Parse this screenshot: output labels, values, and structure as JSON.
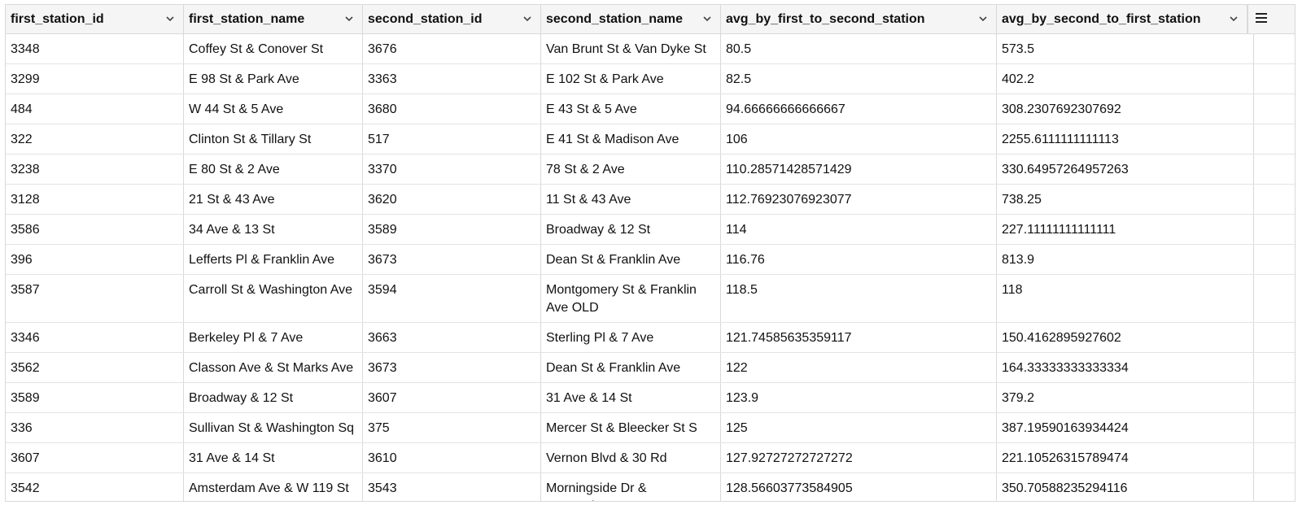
{
  "table": {
    "columns": [
      "first_station_id",
      "first_station_name",
      "second_station_id",
      "second_station_name",
      "avg_by_first_to_second_station",
      "avg_by_second_to_first_station"
    ],
    "rows": [
      [
        "3348",
        "Coffey St & Conover St",
        "3676",
        "Van Brunt St & Van Dyke St",
        "80.5",
        "573.5"
      ],
      [
        "3299",
        "E 98 St & Park Ave",
        "3363",
        "E 102 St & Park Ave",
        "82.5",
        "402.2"
      ],
      [
        "484",
        "W 44 St & 5 Ave",
        "3680",
        "E 43 St & 5 Ave",
        "94.66666666666667",
        "308.2307692307692"
      ],
      [
        "322",
        "Clinton St & Tillary St",
        "517",
        "E 41 St & Madison Ave",
        "106",
        "2255.6111111111113"
      ],
      [
        "3238",
        "E 80 St & 2 Ave",
        "3370",
        "78 St & 2 Ave",
        "110.28571428571429",
        "330.64957264957263"
      ],
      [
        "3128",
        "21 St & 43 Ave",
        "3620",
        "11 St & 43 Ave",
        "112.76923076923077",
        "738.25"
      ],
      [
        "3586",
        "34 Ave & 13 St",
        "3589",
        "Broadway & 12 St",
        "114",
        "227.11111111111111"
      ],
      [
        "396",
        "Lefferts Pl & Franklin Ave",
        "3673",
        "Dean St & Franklin Ave",
        "116.76",
        "813.9"
      ],
      [
        "3587",
        "Carroll St & Washington Ave",
        "3594",
        "Montgomery St & Franklin Ave OLD",
        "118.5",
        "118"
      ],
      [
        "3346",
        "Berkeley Pl & 7 Ave",
        "3663",
        "Sterling Pl & 7 Ave",
        "121.74585635359117",
        "150.4162895927602"
      ],
      [
        "3562",
        "Classon Ave & St Marks Ave",
        "3673",
        "Dean St & Franklin Ave",
        "122",
        "164.33333333333334"
      ],
      [
        "3589",
        "Broadway & 12 St",
        "3607",
        "31 Ave & 14 St",
        "123.9",
        "379.2"
      ],
      [
        "336",
        "Sullivan St & Washington Sq",
        "375",
        "Mercer St & Bleecker St S",
        "125",
        "387.19590163934424"
      ],
      [
        "3607",
        "31 Ave & 14 St",
        "3610",
        "Vernon Blvd & 30 Rd",
        "127.92727272727272",
        "221.10526315789474"
      ],
      [
        "3542",
        "Amsterdam Ave & W 119 St",
        "3543",
        "Morningside Dr & Amsterdam Ave",
        "128.56603773584905",
        "350.70588235294116"
      ]
    ]
  },
  "icons": {
    "sort": "chevron-down-icon",
    "menu": "hamburger-menu-icon"
  },
  "colors": {
    "header_bg": "#f5f5f5",
    "border": "#d9d9d9",
    "text": "#111111"
  }
}
